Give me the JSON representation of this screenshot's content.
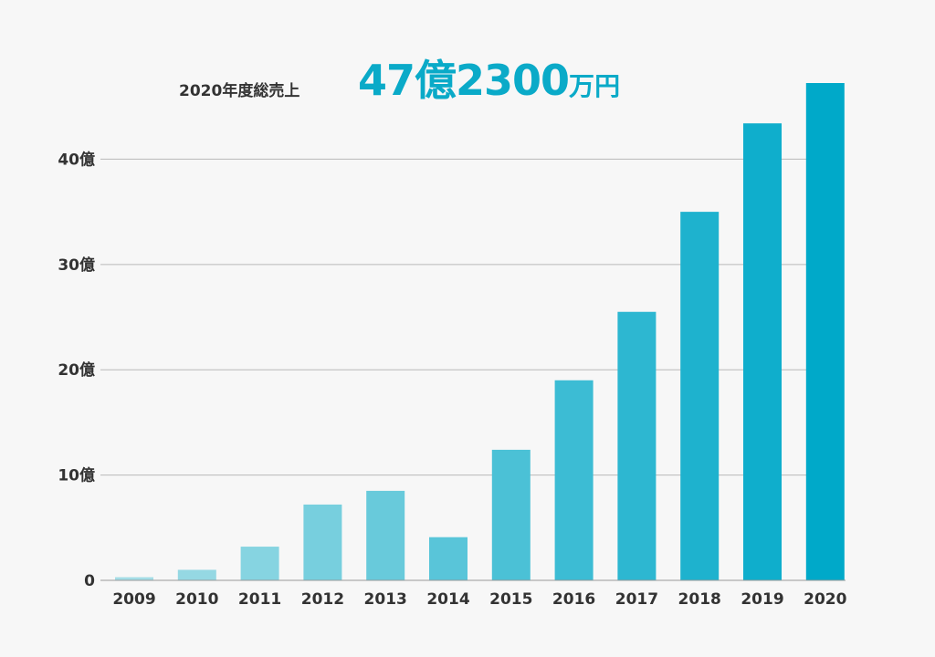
{
  "headline": {
    "label": "2020年度総売上",
    "value_parts": [
      "47",
      "億",
      "2300",
      "万",
      "円"
    ]
  },
  "chart_data": {
    "type": "bar",
    "categories": [
      "2009",
      "2010",
      "2011",
      "2012",
      "2013",
      "2014",
      "2015",
      "2016",
      "2017",
      "2018",
      "2019",
      "2020"
    ],
    "values": [
      0.3,
      1.0,
      3.2,
      7.2,
      8.5,
      4.1,
      12.4,
      19.0,
      25.5,
      35.0,
      43.4,
      47.23
    ],
    "y_ticks": [
      0,
      10,
      20,
      30,
      40
    ],
    "y_tick_labels": [
      "0",
      "10億",
      "20億",
      "30億",
      "40億"
    ],
    "ylim": [
      0,
      47.23
    ],
    "grid": true,
    "colors": {
      "bar_start": "#a4dde6",
      "bar_end": "#00a9c9",
      "accent": "#0aaac8",
      "text": "#333333"
    }
  }
}
